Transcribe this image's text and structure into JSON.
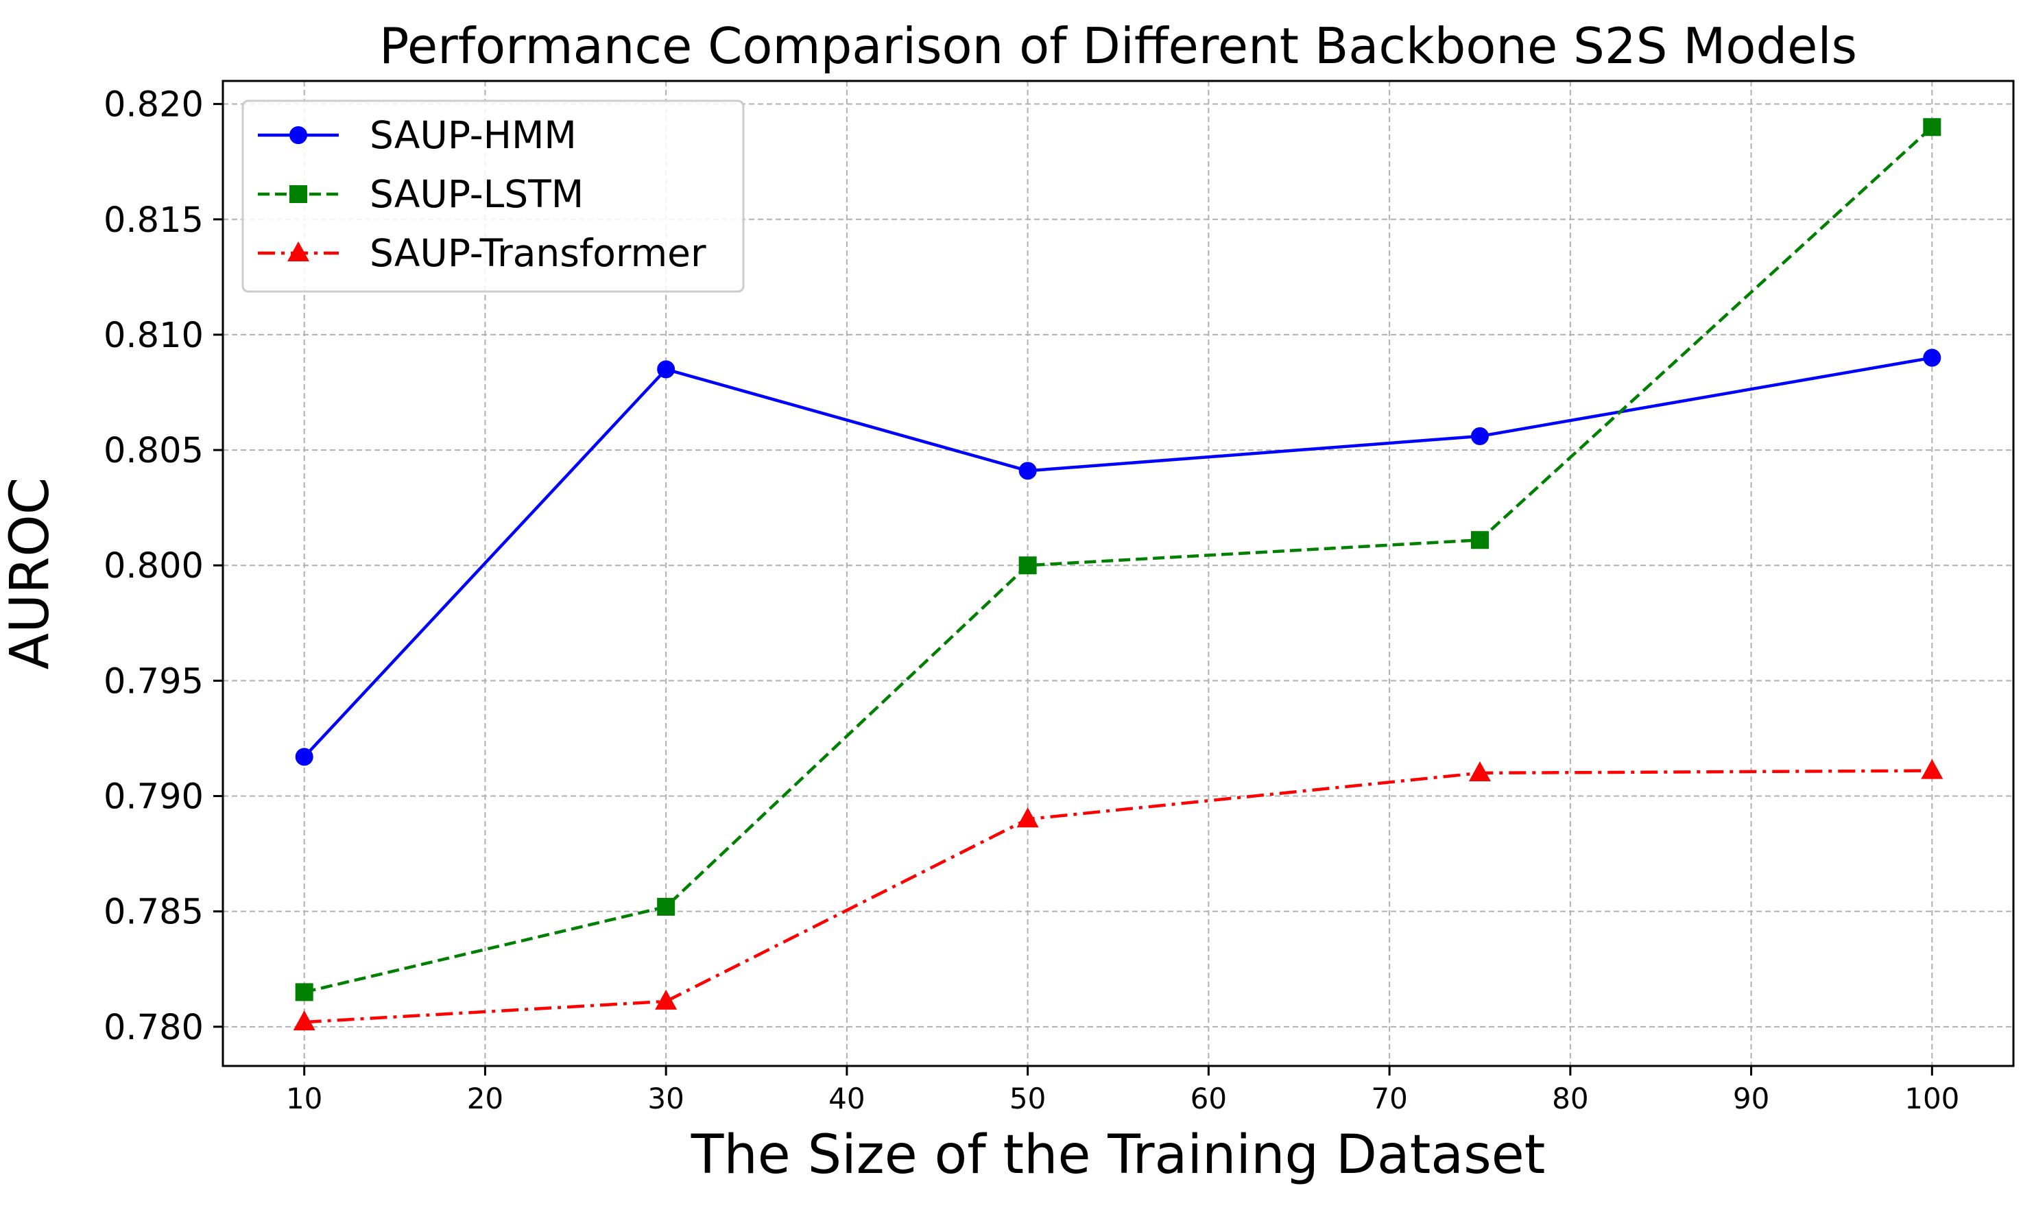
{
  "chart_data": {
    "type": "line",
    "title": "Performance Comparison of Different Backbone S2S Models",
    "xlabel": "The Size of the Training Dataset",
    "ylabel": "AUROC",
    "x": [
      10,
      30,
      50,
      75,
      100
    ],
    "xlim": [
      5.5,
      104.5
    ],
    "ylim": [
      0.7783,
      0.821
    ],
    "xticks": [
      10,
      20,
      30,
      40,
      50,
      60,
      70,
      80,
      90,
      100
    ],
    "xtick_labels": [
      "10",
      "20",
      "30",
      "40",
      "50",
      "60",
      "70",
      "80",
      "90",
      "100"
    ],
    "yticks": [
      0.78,
      0.785,
      0.79,
      0.795,
      0.8,
      0.805,
      0.81,
      0.815,
      0.82
    ],
    "ytick_labels": [
      "0.780",
      "0.785",
      "0.790",
      "0.795",
      "0.800",
      "0.805",
      "0.810",
      "0.815",
      "0.820"
    ],
    "grid": true,
    "legend_position": "upper-left",
    "series": [
      {
        "name": "SAUP-HMM",
        "values": [
          0.7917,
          0.8085,
          0.8041,
          0.8056,
          0.809
        ],
        "color": "#0000ff",
        "marker": "circle",
        "line_style": "solid"
      },
      {
        "name": "SAUP-LSTM",
        "values": [
          0.7815,
          0.7852,
          0.8,
          0.8011,
          0.819
        ],
        "color": "#008000",
        "marker": "square",
        "line_style": "dashed"
      },
      {
        "name": "SAUP-Transformer",
        "values": [
          0.7802,
          0.7811,
          0.789,
          0.791,
          0.7911
        ],
        "color": "#ff0000",
        "marker": "triangle",
        "line_style": "dash-dot"
      }
    ]
  }
}
